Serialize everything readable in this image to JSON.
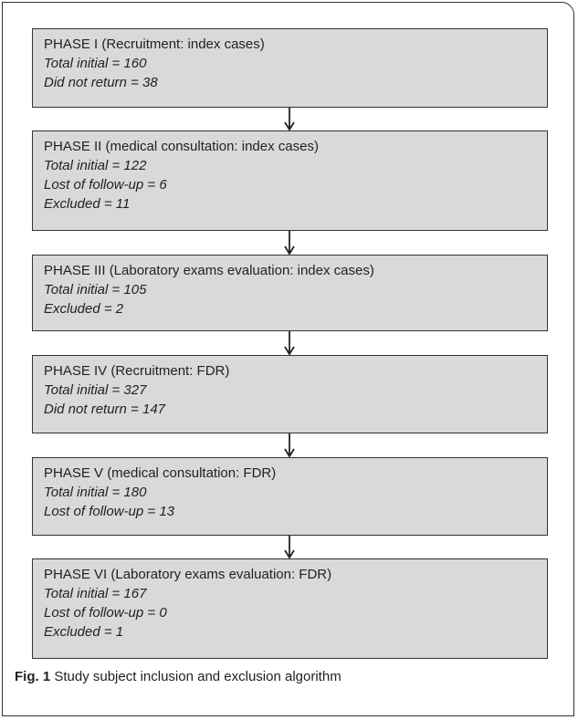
{
  "nodes": [
    {
      "title": "PHASE I (Recruitment:  index cases)",
      "lines": [
        "Total initial = 160",
        "Did not return = 38"
      ]
    },
    {
      "title": "PHASE II (medical consultation: index cases)",
      "lines": [
        "Total initial = 122",
        "Lost of follow-up = 6",
        "Excluded = 11"
      ]
    },
    {
      "title": "PHASE III (Laboratory exams evaluation: index cases)",
      "lines": [
        "Total initial = 105",
        "Excluded = 2"
      ]
    },
    {
      "title": "PHASE IV (Recruitment: FDR)",
      "lines": [
        "Total initial = 327",
        "Did not return = 147"
      ]
    },
    {
      "title": "PHASE V (medical consultation: FDR)",
      "lines": [
        "Total initial = 180",
        "Lost of follow-up = 13"
      ]
    },
    {
      "title": "PHASE VI (Laboratory exams evaluation: FDR)",
      "lines": [
        "Total initial = 167",
        "Lost of follow-up = 0",
        "Excluded = 1"
      ]
    }
  ],
  "caption": {
    "label": "Fig. 1",
    "text": "Study subject inclusion and exclusion algorithm"
  }
}
